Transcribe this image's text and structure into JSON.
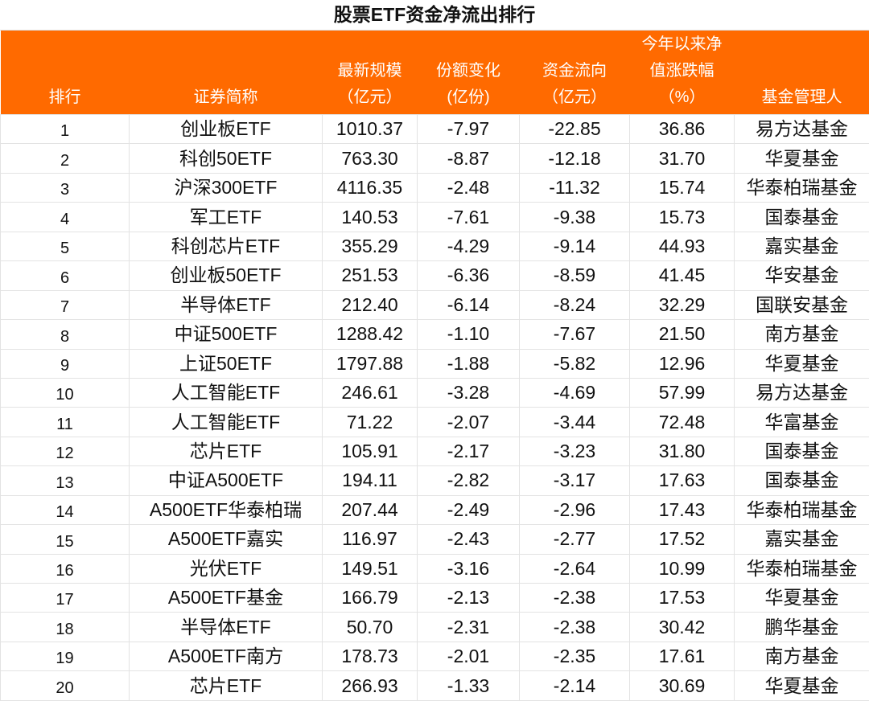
{
  "title": "股票ETF资金净流出排行",
  "header_color": "#ff6a00",
  "columns": [
    {
      "lines": [
        "排行"
      ]
    },
    {
      "lines": [
        "证券简称"
      ]
    },
    {
      "lines": [
        "最新规模",
        "（亿元）"
      ]
    },
    {
      "lines": [
        "份额变化",
        "(亿份)"
      ]
    },
    {
      "lines": [
        "资金流向",
        "（亿元）"
      ]
    },
    {
      "lines": [
        "今年以来净",
        "值涨跌幅",
        "（%）"
      ]
    },
    {
      "lines": [
        "基金管理人"
      ]
    }
  ],
  "rows": [
    [
      "1",
      "创业板ETF",
      "1010.37",
      "-7.97",
      "-22.85",
      "36.86",
      "易方达基金"
    ],
    [
      "2",
      "科创50ETF",
      "763.30",
      "-8.87",
      "-12.18",
      "31.70",
      "华夏基金"
    ],
    [
      "3",
      "沪深300ETF",
      "4116.35",
      "-2.48",
      "-11.32",
      "15.74",
      "华泰柏瑞基金"
    ],
    [
      "4",
      "军工ETF",
      "140.53",
      "-7.61",
      "-9.38",
      "15.73",
      "国泰基金"
    ],
    [
      "5",
      "科创芯片ETF",
      "355.29",
      "-4.29",
      "-9.14",
      "44.93",
      "嘉实基金"
    ],
    [
      "6",
      "创业板50ETF",
      "251.53",
      "-6.36",
      "-8.59",
      "41.45",
      "华安基金"
    ],
    [
      "7",
      "半导体ETF",
      "212.40",
      "-6.14",
      "-8.24",
      "32.29",
      "国联安基金"
    ],
    [
      "8",
      "中证500ETF",
      "1288.42",
      "-1.10",
      "-7.67",
      "21.50",
      "南方基金"
    ],
    [
      "9",
      "上证50ETF",
      "1797.88",
      "-1.88",
      "-5.82",
      "12.96",
      "华夏基金"
    ],
    [
      "10",
      "人工智能ETF",
      "246.61",
      "-3.28",
      "-4.69",
      "57.99",
      "易方达基金"
    ],
    [
      "11",
      "人工智能ETF",
      "71.22",
      "-2.07",
      "-3.44",
      "72.48",
      "华富基金"
    ],
    [
      "12",
      "芯片ETF",
      "105.91",
      "-2.17",
      "-3.23",
      "31.80",
      "国泰基金"
    ],
    [
      "13",
      "中证A500ETF",
      "194.11",
      "-2.82",
      "-3.17",
      "17.63",
      "国泰基金"
    ],
    [
      "14",
      "A500ETF华泰柏瑞",
      "207.44",
      "-2.49",
      "-2.96",
      "17.43",
      "华泰柏瑞基金"
    ],
    [
      "15",
      "A500ETF嘉实",
      "116.97",
      "-2.43",
      "-2.77",
      "17.52",
      "嘉实基金"
    ],
    [
      "16",
      "光伏ETF",
      "149.51",
      "-3.16",
      "-2.64",
      "10.99",
      "华泰柏瑞基金"
    ],
    [
      "17",
      "A500ETF基金",
      "166.79",
      "-2.13",
      "-2.38",
      "17.53",
      "华夏基金"
    ],
    [
      "18",
      "半导体ETF",
      "50.70",
      "-2.31",
      "-2.38",
      "30.42",
      "鹏华基金"
    ],
    [
      "19",
      "A500ETF南方",
      "178.73",
      "-2.01",
      "-2.35",
      "17.61",
      "南方基金"
    ],
    [
      "20",
      "芯片ETF",
      "266.93",
      "-1.33",
      "-2.14",
      "30.69",
      "华夏基金"
    ]
  ]
}
